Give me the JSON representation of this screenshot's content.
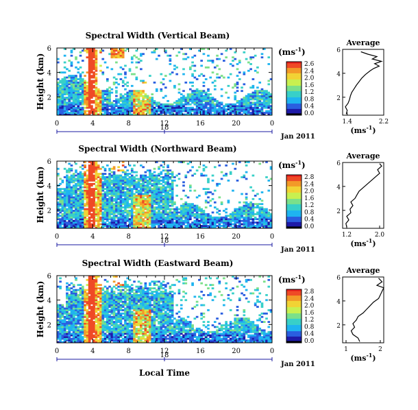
{
  "figure": {
    "xlabel": "Local Time",
    "date_label": "Jan 2011",
    "colorbar_unit": "(ms",
    "colorbar_unit_sup": "-1",
    "colorbar_unit_close": ")",
    "average_title": "Average"
  },
  "colors": {
    "scale": [
      "#1e1aa8",
      "#2a5ee0",
      "#1fb4f0",
      "#38d0c8",
      "#7be08a",
      "#c8f050",
      "#f2d335",
      "#f39a28",
      "#ef4a26"
    ],
    "low": "#000000",
    "high": "#e81f1f",
    "date_axis": "#1a1aa0"
  },
  "chart_data": [
    {
      "type": "heatmap",
      "title": "Spectral Width (Vertical Beam)",
      "ylabel": "Height (km)",
      "xlim": [
        0,
        24
      ],
      "ylim": [
        0.5,
        6
      ],
      "xticks": [
        "0",
        "4",
        "8",
        "12",
        "16",
        "20",
        "0"
      ],
      "yticks": [
        "2",
        "4",
        "6"
      ],
      "date_tick": "18",
      "colorbar": {
        "range": [
          0.0,
          2.6
        ],
        "ticks": [
          "2.6",
          "2.4",
          "2.0",
          "1.6",
          "1.2",
          "0.8",
          "0.4",
          "0.0"
        ]
      },
      "average_profile": {
        "xlim": [
          1.3,
          2.2
        ],
        "xticks": [
          "1.4",
          "2.2"
        ],
        "xlabel": "(ms",
        "ylim": [
          0.5,
          6
        ],
        "yticks": [
          "2",
          "4",
          "6"
        ],
        "points": [
          [
            1.38,
            0.6
          ],
          [
            1.4,
            0.9
          ],
          [
            1.36,
            1.2
          ],
          [
            1.42,
            1.5
          ],
          [
            1.45,
            1.8
          ],
          [
            1.47,
            2.1
          ],
          [
            1.5,
            2.4
          ],
          [
            1.55,
            2.7
          ],
          [
            1.6,
            3.0
          ],
          [
            1.66,
            3.3
          ],
          [
            1.72,
            3.6
          ],
          [
            1.8,
            3.9
          ],
          [
            1.9,
            4.2
          ],
          [
            1.98,
            4.4
          ],
          [
            2.1,
            4.6
          ],
          [
            2.0,
            4.8
          ],
          [
            2.15,
            5.0
          ],
          [
            1.95,
            5.2
          ],
          [
            2.05,
            5.4
          ],
          [
            1.85,
            5.6
          ],
          [
            1.7,
            5.8
          ]
        ]
      }
    },
    {
      "type": "heatmap",
      "title": "Spectral Width (Northward Beam)",
      "ylabel": "Height (km)",
      "xlim": [
        0,
        24
      ],
      "ylim": [
        0.5,
        6
      ],
      "xticks": [
        "0",
        "4",
        "8",
        "12",
        "16",
        "20",
        "0"
      ],
      "yticks": [
        "2",
        "4",
        "6"
      ],
      "date_tick": "18",
      "colorbar": {
        "range": [
          0.0,
          2.8
        ],
        "ticks": [
          "2.8",
          "2.4",
          "2.0",
          "1.6",
          "1.2",
          "0.8",
          "0.4",
          "0.0"
        ]
      },
      "average_profile": {
        "xlim": [
          1.1,
          2.1
        ],
        "xticks": [
          "1.2",
          "2.0"
        ],
        "xlabel": "(ms",
        "ylim": [
          0.5,
          6
        ],
        "yticks": [
          "2",
          "4",
          "6"
        ],
        "points": [
          [
            1.2,
            0.6
          ],
          [
            1.18,
            0.9
          ],
          [
            1.25,
            1.2
          ],
          [
            1.2,
            1.5
          ],
          [
            1.3,
            1.8
          ],
          [
            1.28,
            2.1
          ],
          [
            1.35,
            2.4
          ],
          [
            1.3,
            2.7
          ],
          [
            1.4,
            3.0
          ],
          [
            1.45,
            3.3
          ],
          [
            1.5,
            3.6
          ],
          [
            1.6,
            3.9
          ],
          [
            1.7,
            4.2
          ],
          [
            1.8,
            4.5
          ],
          [
            1.9,
            4.8
          ],
          [
            2.0,
            5.1
          ],
          [
            1.95,
            5.4
          ],
          [
            2.05,
            5.7
          ],
          [
            2.0,
            5.9
          ]
        ]
      }
    },
    {
      "type": "heatmap",
      "title": "Spectral Width (Eastward Beam)",
      "ylabel": "Height (km)",
      "xlim": [
        0,
        24
      ],
      "ylim": [
        0.5,
        6
      ],
      "xticks": [
        "0",
        "4",
        "8",
        "12",
        "16",
        "20",
        "0"
      ],
      "yticks": [
        "2",
        "4",
        "6"
      ],
      "date_tick": "18",
      "colorbar": {
        "range": [
          0.0,
          2.8
        ],
        "ticks": [
          "2.8",
          "2.4",
          "2.0",
          "1.6",
          "1.2",
          "0.8",
          "0.4",
          "0.0"
        ]
      },
      "average_profile": {
        "xlim": [
          0.9,
          2.1
        ],
        "xticks": [
          "1",
          "2"
        ],
        "xlabel": "(ms",
        "ylim": [
          0.5,
          6
        ],
        "yticks": [
          "2",
          "4",
          "6"
        ],
        "points": [
          [
            1.4,
            0.6
          ],
          [
            1.35,
            0.9
          ],
          [
            1.2,
            1.2
          ],
          [
            1.15,
            1.5
          ],
          [
            1.25,
            1.8
          ],
          [
            1.2,
            2.1
          ],
          [
            1.3,
            2.4
          ],
          [
            1.35,
            2.7
          ],
          [
            1.5,
            3.0
          ],
          [
            1.6,
            3.3
          ],
          [
            1.7,
            3.6
          ],
          [
            1.8,
            3.9
          ],
          [
            1.95,
            4.2
          ],
          [
            2.0,
            4.5
          ],
          [
            2.05,
            4.8
          ],
          [
            2.1,
            5.1
          ],
          [
            1.9,
            5.3
          ],
          [
            2.05,
            5.6
          ],
          [
            1.95,
            5.9
          ]
        ]
      }
    }
  ]
}
